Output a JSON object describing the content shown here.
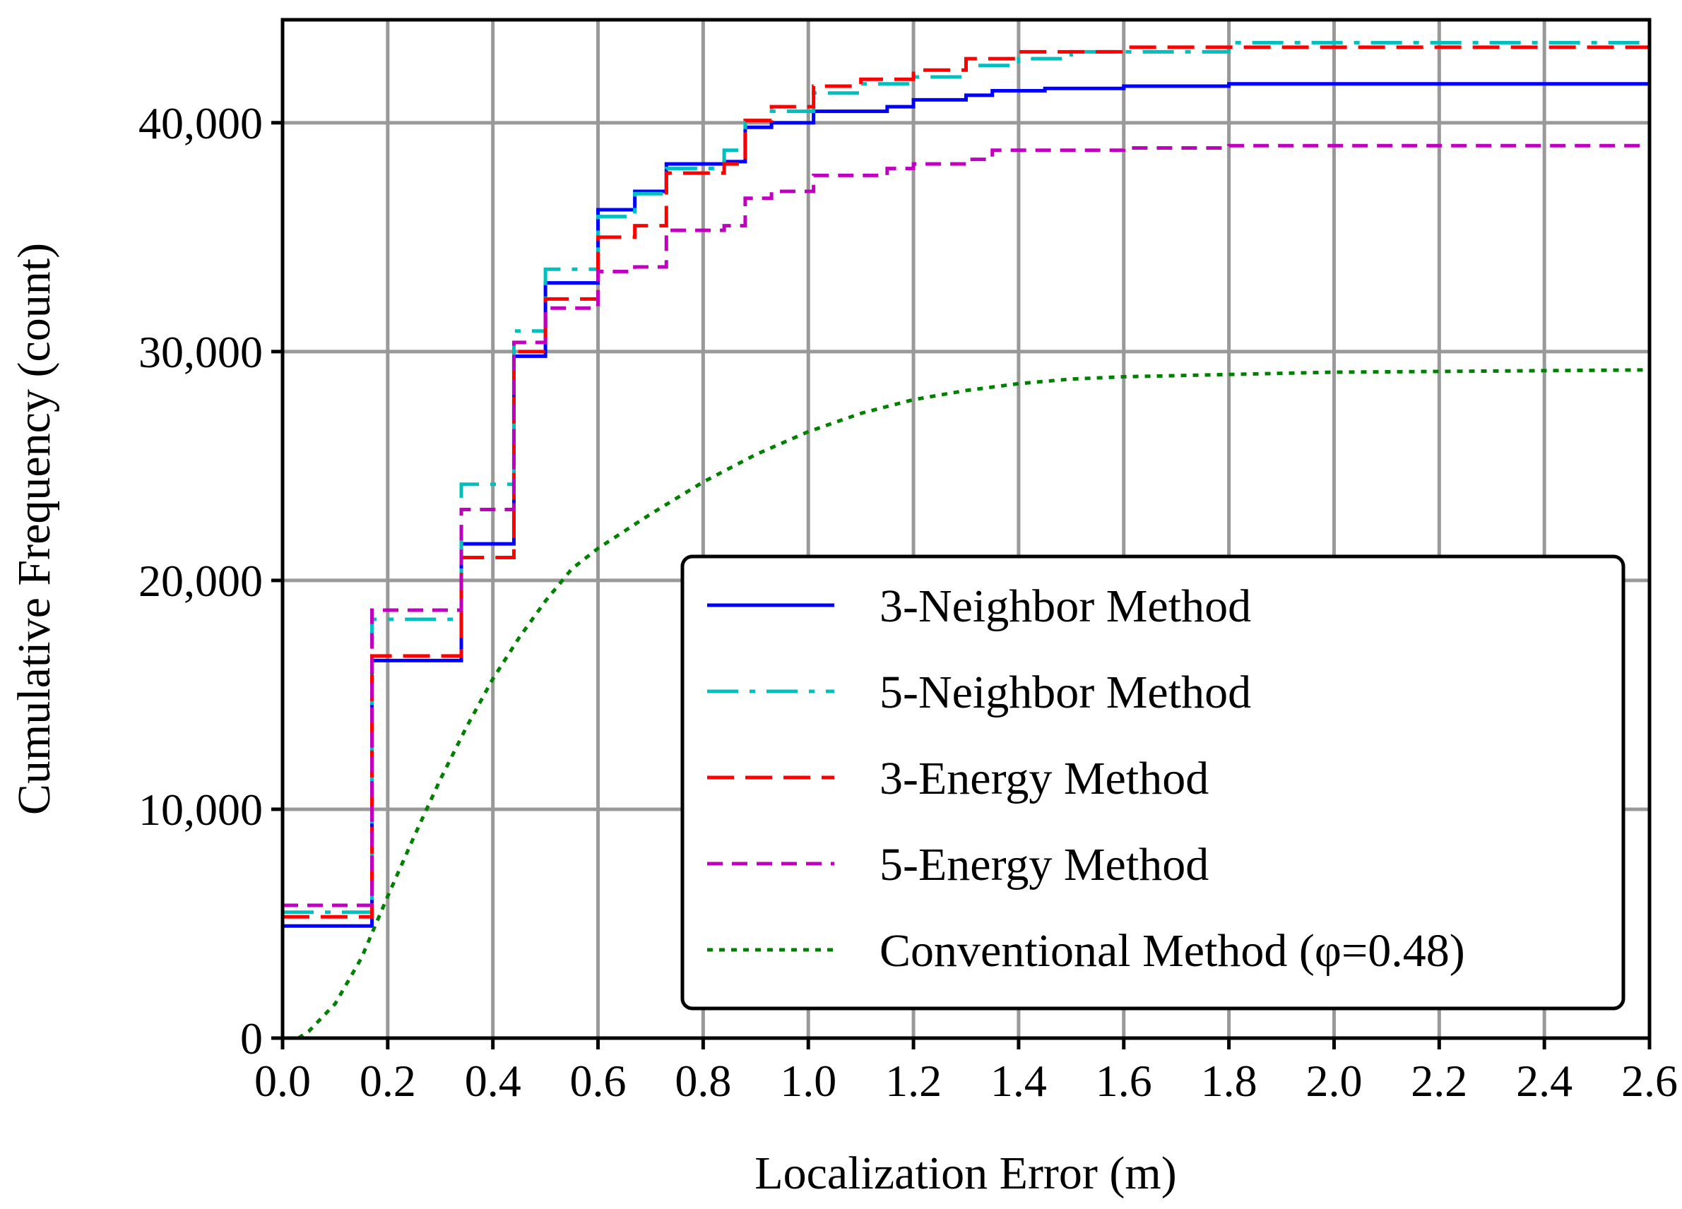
{
  "chart_data": {
    "type": "line",
    "title": "",
    "xlabel": "Localization Error (m)",
    "ylabel": "Cumulative Frequency (count)",
    "xlim": [
      0.0,
      2.6
    ],
    "ylim": [
      0,
      44500
    ],
    "x_ticks": [
      "0.0",
      "0.2",
      "0.4",
      "0.6",
      "0.8",
      "1.0",
      "1.2",
      "1.4",
      "1.6",
      "1.8",
      "2.0",
      "2.2",
      "2.4",
      "2.6"
    ],
    "y_ticks": [
      "0",
      "10,000",
      "20,000",
      "30,000",
      "40,000"
    ],
    "grid": true,
    "legend_position": "lower-right",
    "series": [
      {
        "name": "3-Neighbor Method",
        "color": "#0000ff",
        "dash": "solid",
        "step": true,
        "points": [
          [
            0.0,
            4900
          ],
          [
            0.17,
            16500
          ],
          [
            0.34,
            21600
          ],
          [
            0.44,
            29800
          ],
          [
            0.5,
            33000
          ],
          [
            0.6,
            36200
          ],
          [
            0.67,
            37000
          ],
          [
            0.73,
            38200
          ],
          [
            0.84,
            38300
          ],
          [
            0.88,
            39800
          ],
          [
            0.93,
            40000
          ],
          [
            1.01,
            40500
          ],
          [
            1.15,
            40700
          ],
          [
            1.2,
            41000
          ],
          [
            1.3,
            41200
          ],
          [
            1.35,
            41400
          ],
          [
            1.45,
            41500
          ],
          [
            1.6,
            41600
          ],
          [
            1.8,
            41700
          ],
          [
            2.6,
            41700
          ]
        ]
      },
      {
        "name": "5-Neighbor Method",
        "color": "#00bfbf",
        "dash": "dashdot",
        "step": true,
        "points": [
          [
            0.0,
            5500
          ],
          [
            0.17,
            18300
          ],
          [
            0.34,
            24200
          ],
          [
            0.44,
            30900
          ],
          [
            0.5,
            33600
          ],
          [
            0.6,
            35900
          ],
          [
            0.67,
            36900
          ],
          [
            0.73,
            38000
          ],
          [
            0.84,
            38800
          ],
          [
            0.88,
            40100
          ],
          [
            0.93,
            40500
          ],
          [
            1.01,
            41300
          ],
          [
            1.1,
            41700
          ],
          [
            1.2,
            42000
          ],
          [
            1.3,
            42500
          ],
          [
            1.4,
            42800
          ],
          [
            1.5,
            43100
          ],
          [
            1.8,
            43500
          ],
          [
            2.6,
            43600
          ]
        ]
      },
      {
        "name": "3-Energy Method",
        "color": "#ff0000",
        "dash": "longdash",
        "step": true,
        "points": [
          [
            0.0,
            5300
          ],
          [
            0.17,
            16700
          ],
          [
            0.34,
            21000
          ],
          [
            0.44,
            30000
          ],
          [
            0.5,
            32300
          ],
          [
            0.6,
            35000
          ],
          [
            0.67,
            35500
          ],
          [
            0.73,
            37800
          ],
          [
            0.84,
            38200
          ],
          [
            0.88,
            40100
          ],
          [
            0.93,
            40700
          ],
          [
            1.01,
            41600
          ],
          [
            1.1,
            41900
          ],
          [
            1.2,
            42300
          ],
          [
            1.3,
            42800
          ],
          [
            1.4,
            43100
          ],
          [
            1.6,
            43300
          ],
          [
            2.6,
            43400
          ]
        ]
      },
      {
        "name": "5-Energy Method",
        "color": "#bf00bf",
        "dash": "shortdash",
        "step": true,
        "points": [
          [
            0.0,
            5800
          ],
          [
            0.17,
            18700
          ],
          [
            0.34,
            23100
          ],
          [
            0.44,
            30400
          ],
          [
            0.5,
            31900
          ],
          [
            0.6,
            33500
          ],
          [
            0.67,
            33700
          ],
          [
            0.73,
            35300
          ],
          [
            0.84,
            35500
          ],
          [
            0.88,
            36700
          ],
          [
            0.93,
            37000
          ],
          [
            1.01,
            37700
          ],
          [
            1.15,
            38000
          ],
          [
            1.2,
            38200
          ],
          [
            1.3,
            38400
          ],
          [
            1.35,
            38800
          ],
          [
            1.6,
            38900
          ],
          [
            1.8,
            39000
          ],
          [
            2.6,
            39000
          ]
        ]
      },
      {
        "name": "Conventional Method (φ=0.48)",
        "color": "#008000",
        "dash": "dotted",
        "step": false,
        "points": [
          [
            0.03,
            0
          ],
          [
            0.05,
            300
          ],
          [
            0.1,
            1500
          ],
          [
            0.15,
            3500
          ],
          [
            0.2,
            6200
          ],
          [
            0.25,
            8800
          ],
          [
            0.3,
            11300
          ],
          [
            0.35,
            13600
          ],
          [
            0.4,
            15700
          ],
          [
            0.45,
            17500
          ],
          [
            0.5,
            19100
          ],
          [
            0.55,
            20500
          ],
          [
            0.6,
            21400
          ],
          [
            0.7,
            22900
          ],
          [
            0.8,
            24300
          ],
          [
            0.9,
            25500
          ],
          [
            1.0,
            26500
          ],
          [
            1.1,
            27300
          ],
          [
            1.2,
            27900
          ],
          [
            1.3,
            28300
          ],
          [
            1.4,
            28600
          ],
          [
            1.5,
            28800
          ],
          [
            1.6,
            28900
          ],
          [
            1.8,
            29000
          ],
          [
            2.0,
            29100
          ],
          [
            2.6,
            29200
          ]
        ]
      }
    ]
  }
}
